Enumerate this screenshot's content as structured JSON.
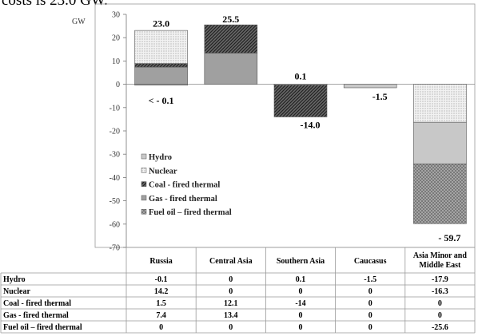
{
  "caption": "costs is 23.0 GW.",
  "chart_data": {
    "type": "bar",
    "stacked": true,
    "ylabel": "GW",
    "ylim": [
      -70,
      30
    ],
    "yticks": [
      30,
      20,
      10,
      0,
      -10,
      -20,
      -30,
      -40,
      -50,
      -60,
      -70
    ],
    "categories": [
      "Russia",
      "Central Asia",
      "Southern Asia",
      "Caucasus",
      "Asia Minor and Middle East"
    ],
    "series": [
      {
        "name": "Hydro",
        "values": [
          -0.1,
          0,
          0.1,
          -1.5,
          -17.9
        ],
        "fill": "#c8c8c8",
        "pattern": "solid"
      },
      {
        "name": "Nuclear",
        "values": [
          14.2,
          0,
          0,
          0,
          -16.3
        ],
        "fill": "#ececec",
        "pattern": "dots"
      },
      {
        "name": "Coal - fired thermal",
        "values": [
          1.5,
          12.1,
          -14,
          0,
          0
        ],
        "fill": "#555555",
        "pattern": "diag"
      },
      {
        "name": "Gas - fired thermal",
        "values": [
          7.4,
          13.4,
          0,
          0,
          0
        ],
        "fill": "#a0a0a0",
        "pattern": "solid"
      },
      {
        "name": "Fuel oil – fired  thermal",
        "values": [
          0,
          0,
          0,
          0,
          -25.6
        ],
        "fill": "#8a8a8a",
        "pattern": "cross"
      }
    ],
    "annotations": [
      {
        "text": "23.0",
        "category": 0,
        "value": 23.0
      },
      {
        "text": "< - 0.1",
        "category": 0,
        "value": -0.1
      },
      {
        "text": "25.5",
        "category": 1,
        "value": 25.5
      },
      {
        "text": "0.1",
        "category": 2,
        "value": 0.1
      },
      {
        "text": "-14.0",
        "category": 2,
        "value": -14.0
      },
      {
        "text": "-1.5",
        "category": 3,
        "value": -1.5
      },
      {
        "text": "- 59.7",
        "category": 4,
        "value": -59.7
      }
    ],
    "table": {
      "columns": [
        "Russia",
        "Central Asia",
        "Southern Asia",
        "Caucasus",
        "Asia Minor and Middle East"
      ],
      "rows": [
        {
          "label": "Hydro",
          "cells": [
            "-0.1",
            "0",
            "0.1",
            "-1.5",
            "-17.9"
          ]
        },
        {
          "label": "Nuclear",
          "cells": [
            "14.2",
            "0",
            "0",
            "0",
            "-16.3"
          ]
        },
        {
          "label": "Coal - fired thermal",
          "cells": [
            "1.5",
            "12.1",
            "-14",
            "0",
            "0"
          ]
        },
        {
          "label": "Gas - fired thermal",
          "cells": [
            "7.4",
            "13.4",
            "0",
            "0",
            "0"
          ]
        },
        {
          "label": "Fuel oil – fired  thermal",
          "cells": [
            "0",
            "0",
            "0",
            "0",
            "-25.6"
          ]
        }
      ]
    },
    "legend": "left"
  }
}
